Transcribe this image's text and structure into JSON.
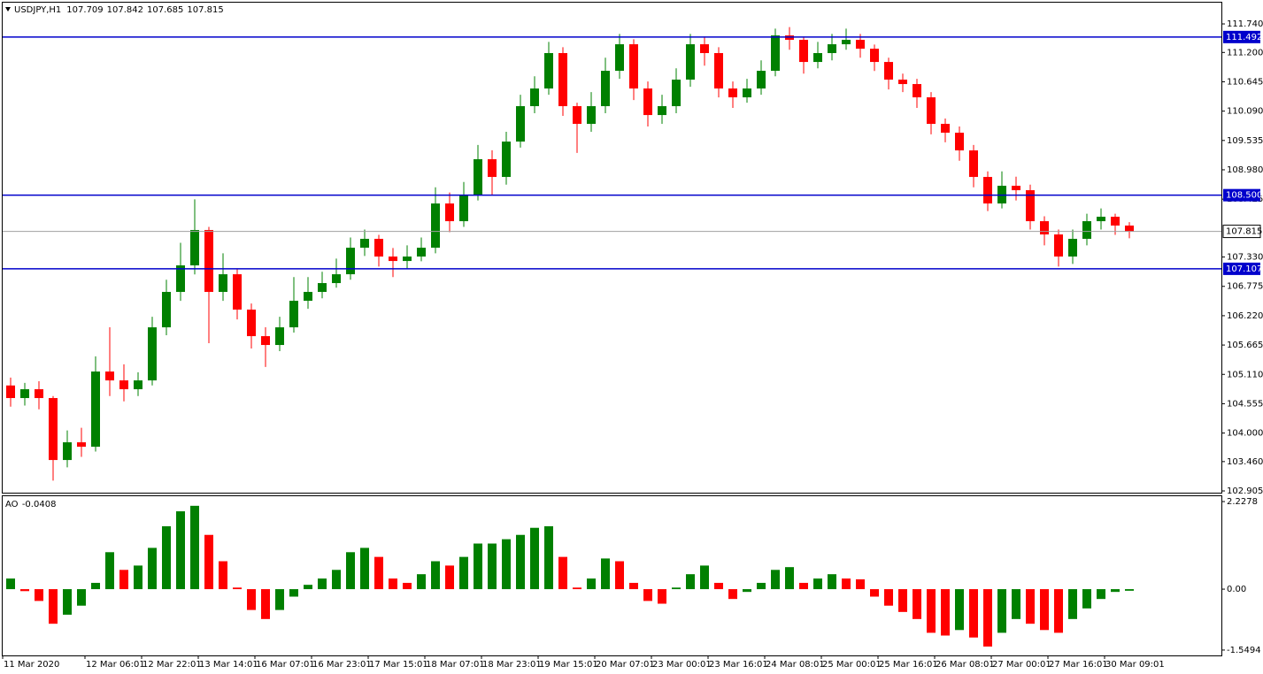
{
  "chart_data": [
    {
      "type": "candlestick",
      "title": "USDJPY,H1",
      "header_values": [
        107.709,
        107.842,
        107.685,
        107.815
      ],
      "categories": [
        "11 Mar 2020",
        null,
        null,
        null,
        null,
        null,
        "12 Mar 06:01",
        null,
        null,
        null,
        "12 Mar 22:01",
        null,
        null,
        null,
        "13 Mar 14:01",
        null,
        null,
        null,
        "16 Mar 07:01",
        null,
        null,
        null,
        "16 Mar 23:01",
        null,
        null,
        null,
        "17 Mar 15:01",
        null,
        null,
        null,
        "18 Mar 07:01",
        null,
        null,
        null,
        "18 Mar 23:01",
        null,
        null,
        null,
        "19 Mar 15:01",
        null,
        null,
        null,
        "20 Mar 07:01",
        null,
        null,
        null,
        "23 Mar 00:01",
        null,
        null,
        null,
        "23 Mar 16:01",
        null,
        null,
        null,
        "24 Mar 08:01",
        null,
        null,
        null,
        "25 Mar 00:01",
        null,
        null,
        null,
        "25 Mar 16:01",
        null,
        null,
        null,
        "26 Mar 08:01",
        null,
        null,
        null,
        "27 Mar 00:01",
        null,
        null,
        null,
        "27 Mar 16:01",
        null,
        null,
        null,
        "30 Mar 09:01",
        null
      ],
      "open": [
        104.9,
        104.662,
        104.829,
        104.662,
        103.49,
        103.825,
        103.741,
        105.164,
        104.996,
        104.829,
        104.996,
        106.0,
        106.67,
        107.172,
        107.841,
        106.67,
        107.004,
        106.335,
        105.833,
        105.666,
        106.0,
        106.502,
        106.67,
        106.837,
        107.004,
        107.506,
        107.674,
        107.339,
        107.255,
        107.339,
        107.506,
        108.343,
        108.008,
        108.51,
        109.18,
        108.845,
        109.514,
        110.184,
        110.518,
        111.188,
        110.184,
        109.849,
        110.184,
        110.853,
        111.355,
        110.518,
        110.016,
        110.184,
        110.686,
        111.355,
        111.188,
        110.518,
        110.351,
        110.518,
        110.853,
        111.522,
        111.439,
        111.02,
        111.188,
        111.355,
        111.439,
        111.271,
        111.02,
        110.686,
        110.602,
        110.351,
        109.849,
        109.682,
        109.347,
        108.845,
        108.343,
        108.678,
        108.594,
        108.008,
        107.757,
        107.339,
        107.674,
        108.008,
        108.092,
        107.925
      ],
      "high": [
        105.05,
        104.95,
        104.98,
        104.7,
        104.05,
        104.1,
        105.45,
        106.0,
        105.3,
        105.15,
        106.2,
        106.9,
        107.6,
        108.42,
        107.9,
        107.4,
        107.1,
        106.45,
        106.0,
        106.2,
        106.95,
        106.95,
        107.05,
        107.3,
        107.7,
        107.85,
        107.75,
        107.5,
        107.55,
        107.7,
        108.65,
        108.55,
        108.75,
        109.45,
        109.35,
        109.7,
        110.4,
        110.75,
        111.4,
        111.3,
        110.25,
        110.45,
        111.1,
        111.55,
        111.45,
        110.65,
        110.4,
        110.9,
        111.55,
        111.5,
        111.3,
        110.65,
        110.7,
        111.05,
        111.65,
        111.68,
        111.5,
        111.4,
        111.55,
        111.65,
        111.55,
        111.35,
        111.1,
        110.8,
        110.7,
        110.45,
        109.95,
        109.8,
        109.45,
        108.95,
        108.95,
        108.85,
        108.7,
        108.1,
        107.85,
        107.85,
        108.15,
        108.25,
        108.15,
        107.99
      ],
      "low": [
        104.5,
        104.52,
        104.45,
        103.1,
        103.35,
        103.55,
        103.65,
        104.7,
        104.6,
        104.7,
        104.9,
        105.85,
        106.5,
        107.0,
        105.7,
        106.5,
        106.15,
        105.6,
        105.25,
        105.55,
        105.9,
        106.35,
        106.55,
        106.75,
        106.9,
        107.35,
        107.15,
        106.95,
        107.1,
        107.25,
        107.4,
        107.8,
        107.9,
        108.4,
        108.5,
        108.7,
        109.4,
        110.05,
        110.4,
        110.0,
        109.3,
        109.7,
        110.05,
        110.7,
        110.3,
        109.8,
        109.85,
        110.05,
        110.55,
        110.95,
        110.35,
        110.15,
        110.25,
        110.4,
        110.75,
        111.25,
        110.8,
        110.9,
        111.05,
        111.25,
        111.1,
        110.85,
        110.5,
        110.45,
        110.15,
        109.65,
        109.5,
        109.15,
        108.65,
        108.2,
        108.25,
        108.4,
        107.85,
        107.55,
        107.15,
        107.2,
        107.55,
        107.85,
        107.75,
        107.685
      ],
      "close": [
        104.662,
        104.829,
        104.662,
        103.49,
        103.825,
        103.741,
        105.164,
        104.996,
        104.829,
        104.996,
        106.0,
        106.67,
        107.172,
        107.841,
        106.67,
        107.004,
        106.335,
        105.833,
        105.666,
        106.0,
        106.502,
        106.67,
        106.837,
        107.004,
        107.506,
        107.674,
        107.339,
        107.255,
        107.339,
        107.506,
        108.343,
        108.008,
        108.51,
        109.18,
        108.845,
        109.514,
        110.184,
        110.518,
        111.188,
        110.184,
        109.849,
        110.184,
        110.853,
        111.355,
        110.518,
        110.016,
        110.184,
        110.686,
        111.355,
        111.188,
        110.518,
        110.351,
        110.518,
        110.853,
        111.522,
        111.439,
        111.02,
        111.188,
        111.355,
        111.439,
        111.271,
        111.02,
        110.686,
        110.602,
        110.351,
        109.849,
        109.682,
        109.347,
        108.845,
        108.343,
        108.678,
        108.594,
        108.008,
        107.757,
        107.339,
        107.674,
        108.008,
        108.092,
        107.925,
        107.815
      ],
      "up_color": "#008000",
      "down_color": "#ff0000",
      "price_line_color": "#a0a0a0",
      "ylim": [
        102.872,
        112.142
      ],
      "yticks": [
        {
          "value": 111.74,
          "label": "111.740"
        },
        {
          "value": 111.2,
          "label": "111.200"
        },
        110.645,
        {
          "value": 110.09,
          "label": "110.090"
        },
        109.535,
        {
          "value": 108.98,
          "label": "108.980"
        },
        108.425,
        {
          "value": 107.33,
          "label": "107.330"
        },
        106.775,
        {
          "value": 106.22,
          "label": "106.220"
        },
        105.665,
        {
          "value": 105.11,
          "label": "105.110"
        },
        104.555,
        {
          "value": 104,
          "label": "104.000"
        },
        {
          "value": 103.46,
          "label": "103.460"
        },
        102.905
      ],
      "levels": [
        111.492,
        {
          "value": 108.5,
          "label": "108.500"
        },
        107.107
      ],
      "level_color": "#0000cc"
    },
    {
      "type": "bar",
      "title": "AO",
      "values": [
        0.27,
        -0.05,
        -0.3,
        -0.88,
        -0.65,
        -0.42,
        0.16,
        0.94,
        0.49,
        0.6,
        1.05,
        1.6,
        1.98,
        2.12,
        1.38,
        0.71,
        0.04,
        -0.53,
        -0.76,
        -0.53,
        -0.19,
        0.11,
        0.27,
        0.49,
        0.94,
        1.05,
        0.82,
        0.27,
        0.16,
        0.38,
        0.71,
        0.6,
        0.82,
        1.16,
        1.16,
        1.27,
        1.38,
        1.56,
        1.6,
        0.82,
        0.04,
        0.27,
        0.78,
        0.71,
        0.16,
        -0.3,
        -0.37,
        0.04,
        0.38,
        0.6,
        0.16,
        -0.25,
        -0.07,
        0.16,
        0.49,
        0.56,
        0.16,
        0.27,
        0.38,
        0.27,
        0.25,
        -0.19,
        -0.42,
        -0.58,
        -0.76,
        -1.11,
        -1.18,
        -1.04,
        -1.23,
        -1.46,
        -1.11,
        -0.76,
        -0.88,
        -1.04,
        -1.11,
        -0.76,
        -0.49,
        -0.25,
        -0.07,
        -0.0408
      ],
      "up_color": "#008000",
      "down_color": "#ff0000",
      "ylim": [
        -1.686,
        2.364
      ],
      "yticks": [
        2.2278,
        {
          "value": 0,
          "label": "0.00"
        },
        -1.5494
      ]
    }
  ]
}
